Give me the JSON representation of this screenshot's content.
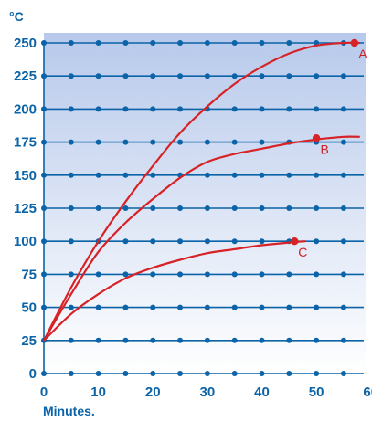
{
  "chart_data": {
    "type": "line",
    "ylabel": "°C",
    "xlabel": "Minutes.",
    "x_ticks": [
      "0",
      "10",
      "20",
      "30",
      "40",
      "50",
      "60"
    ],
    "y_ticks": [
      "0",
      "25",
      "50",
      "75",
      "100",
      "125",
      "150",
      "175",
      "200",
      "225",
      "250"
    ],
    "xlim": [
      0,
      70
    ],
    "ylim": [
      0,
      250
    ],
    "grid": true,
    "series_color": "#d72226",
    "grid_color": "#0b63a8",
    "series": [
      {
        "name": "A",
        "x": [
          0,
          5,
          10,
          15,
          20,
          25,
          30,
          35,
          40,
          45,
          50,
          55,
          58
        ],
        "y": [
          25,
          65,
          100,
          130,
          157,
          182,
          202,
          219,
          232,
          242,
          248,
          250,
          250
        ]
      },
      {
        "name": "B",
        "x": [
          0,
          5,
          10,
          15,
          20,
          25,
          30,
          35,
          40,
          45,
          50,
          55,
          58
        ],
        "y": [
          25,
          60,
          92,
          114,
          132,
          148,
          160,
          166,
          170,
          174,
          177,
          179,
          179
        ]
      },
      {
        "name": "C",
        "x": [
          0,
          5,
          10,
          15,
          20,
          25,
          30,
          35,
          40,
          45,
          48
        ],
        "y": [
          25,
          45,
          60,
          72,
          80,
          86,
          91,
          94,
          97,
          99,
          100
        ]
      }
    ],
    "markers": [
      {
        "label": "A",
        "x": 57,
        "y": 250
      },
      {
        "label": "B",
        "x": 50,
        "y": 178
      },
      {
        "label": "C",
        "x": 46,
        "y": 100
      }
    ]
  }
}
